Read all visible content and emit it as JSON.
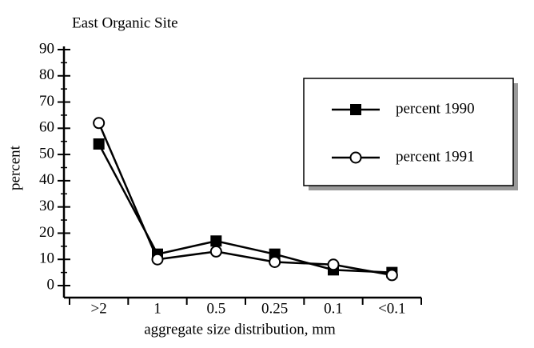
{
  "chart_data": {
    "type": "line",
    "title": "East Organic Site",
    "x_label": "aggregate size distribution, mm",
    "y_label": "percent",
    "categories": [
      ">2",
      "1",
      "0.5",
      "0.25",
      "0.1",
      "<0.1"
    ],
    "series": [
      {
        "name": "percent 1990",
        "color": "#000000",
        "marker": "filled-square",
        "values": [
          54,
          12,
          17,
          12,
          6,
          5
        ]
      },
      {
        "name": "percent 1991",
        "color": "#000000",
        "marker": "open-circle",
        "values": [
          62,
          10,
          13,
          9,
          8,
          4
        ]
      }
    ],
    "ylim": [
      0,
      90
    ],
    "yticks": [
      0,
      10,
      20,
      30,
      40,
      50,
      60,
      70,
      80,
      90
    ],
    "legend": "right",
    "grid": false
  }
}
